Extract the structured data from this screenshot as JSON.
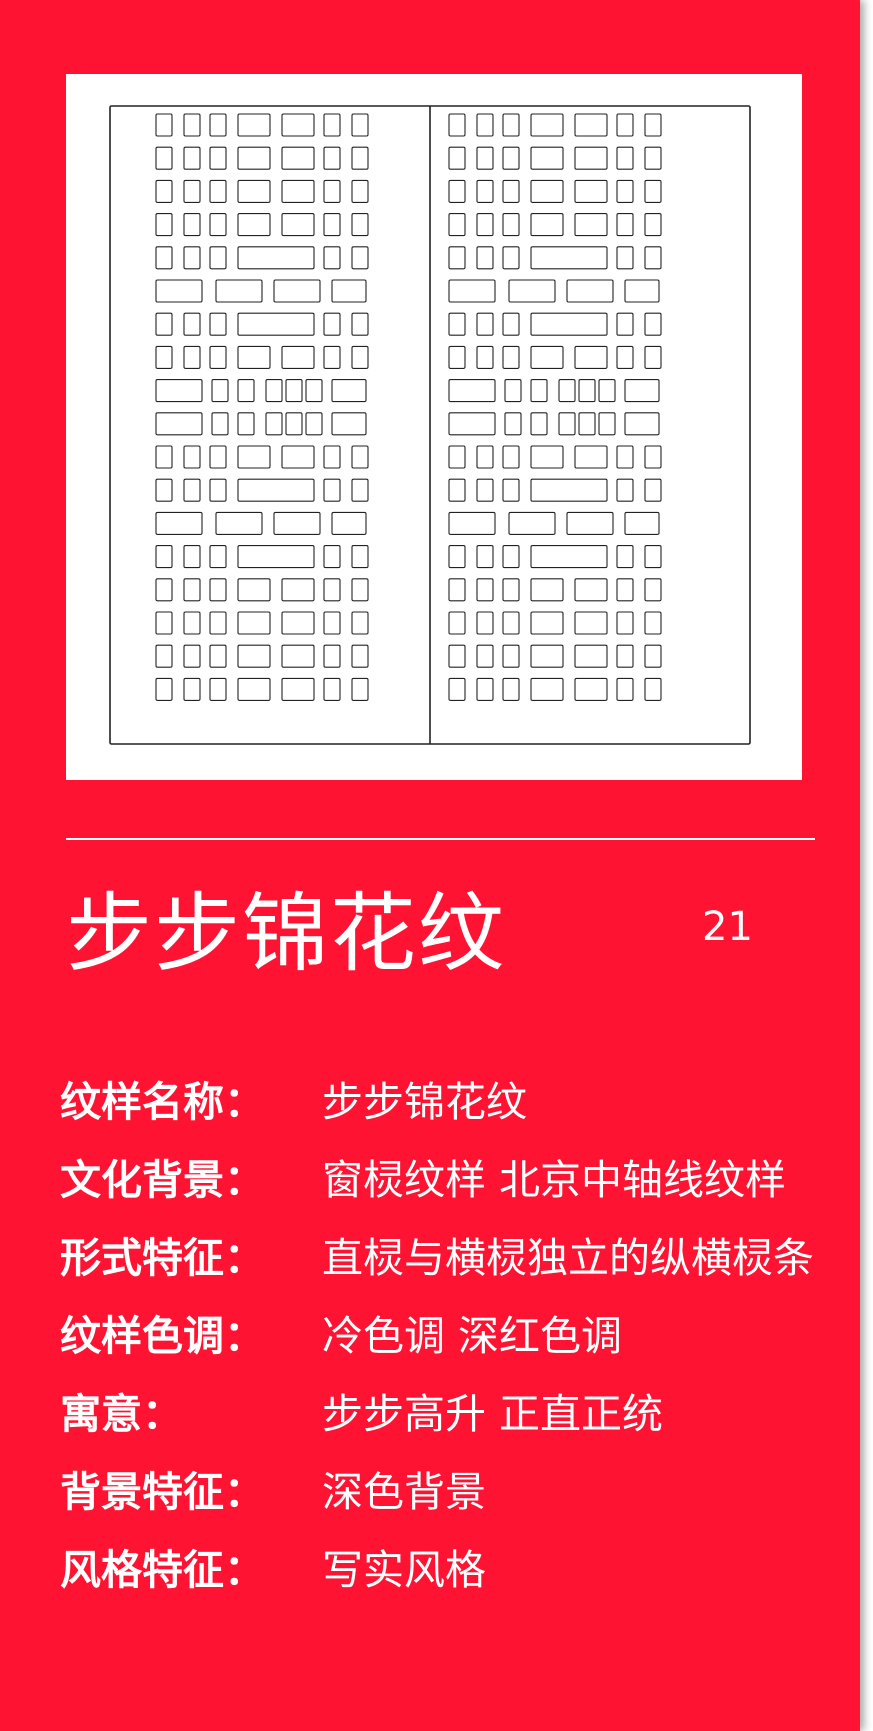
{
  "pattern": {
    "title": "步步锦花纹",
    "number": "21"
  },
  "colors": {
    "card_background": "#fe1432",
    "text": "#ffffff",
    "pattern_line": "#222222"
  },
  "details": [
    {
      "label": "纹样名称：",
      "value": "步步锦花纹"
    },
    {
      "label": "文化背景：",
      "value": "窗棂纹样 北京中轴线纹样"
    },
    {
      "label": "形式特征：",
      "value": "直棂与横棂独立的纵横棂条"
    },
    {
      "label": "纹样色调：",
      "value": "冷色调 深红色调"
    },
    {
      "label": "寓意：",
      "value": "步步高升 正直正统"
    },
    {
      "label": "背景特征：",
      "value": "深色背景"
    },
    {
      "label": "风格特征：",
      "value": "写实风格"
    }
  ]
}
